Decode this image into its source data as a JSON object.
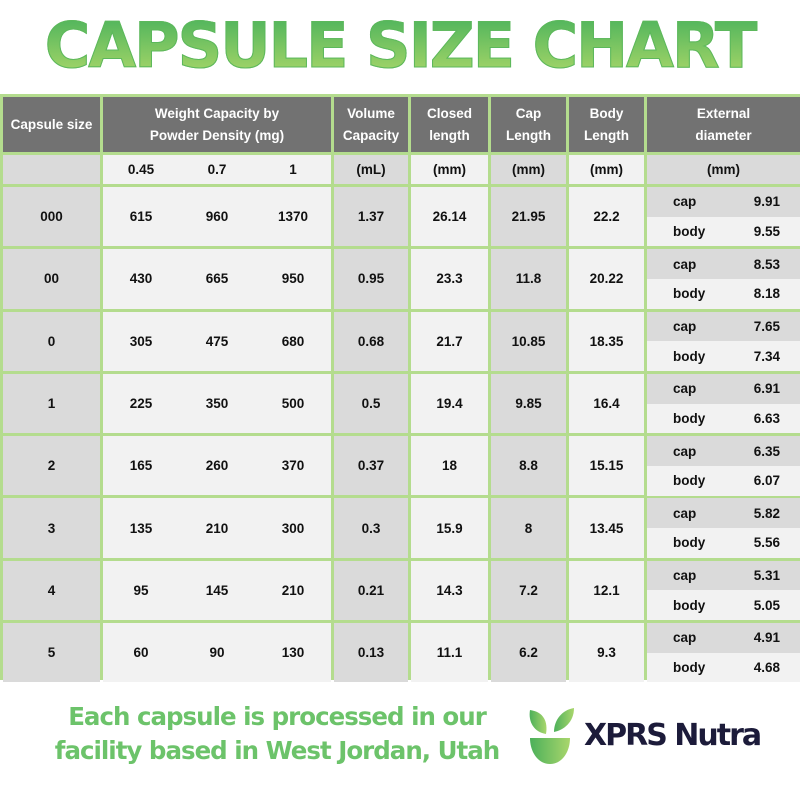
{
  "title": "CAPSULE SIZE CHART",
  "headers": [
    "Capsule size",
    "Weight Capacity by Powder Density (mg)",
    "Volume Capacity",
    "Closed length",
    "Cap Length",
    "Body Length",
    "External diameter"
  ],
  "units": {
    "size": "",
    "densities": [
      "0.45",
      "0.7",
      "1"
    ],
    "volume": "(mL)",
    "closed": "(mm)",
    "cap": "(mm)",
    "body": "(mm)",
    "diameter": "(mm)"
  },
  "labels": {
    "cap": "cap",
    "body": "body"
  },
  "rows": [
    {
      "size": "000",
      "w": [
        "615",
        "960",
        "1370"
      ],
      "volume": "1.37",
      "closed": "26.14",
      "cap_len": "21.95",
      "body_len": "22.2",
      "d_cap": "9.91",
      "d_body": "9.55"
    },
    {
      "size": "00",
      "w": [
        "430",
        "665",
        "950"
      ],
      "volume": "0.95",
      "closed": "23.3",
      "cap_len": "11.8",
      "body_len": "20.22",
      "d_cap": "8.53",
      "d_body": "8.18"
    },
    {
      "size": "0",
      "w": [
        "305",
        "475",
        "680"
      ],
      "volume": "0.68",
      "closed": "21.7",
      "cap_len": "10.85",
      "body_len": "18.35",
      "d_cap": "7.65",
      "d_body": "7.34"
    },
    {
      "size": "1",
      "w": [
        "225",
        "350",
        "500"
      ],
      "volume": "0.5",
      "closed": "19.4",
      "cap_len": "9.85",
      "body_len": "16.4",
      "d_cap": "6.91",
      "d_body": "6.63"
    },
    {
      "size": "2",
      "w": [
        "165",
        "260",
        "370"
      ],
      "volume": "0.37",
      "closed": "18",
      "cap_len": "8.8",
      "body_len": "15.15",
      "d_cap": "6.35",
      "d_body": "6.07"
    },
    {
      "size": "3",
      "w": [
        "135",
        "210",
        "300"
      ],
      "volume": "0.3",
      "closed": "15.9",
      "cap_len": "8",
      "body_len": "13.45",
      "d_cap": "5.82",
      "d_body": "5.56"
    },
    {
      "size": "4",
      "w": [
        "95",
        "145",
        "210"
      ],
      "volume": "0.21",
      "closed": "14.3",
      "cap_len": "7.2",
      "body_len": "12.1",
      "d_cap": "5.31",
      "d_body": "5.05"
    },
    {
      "size": "5",
      "w": [
        "60",
        "90",
        "130"
      ],
      "volume": "0.13",
      "closed": "11.1",
      "cap_len": "6.2",
      "body_len": "9.3",
      "d_cap": "4.91",
      "d_body": "4.68"
    }
  ],
  "footer": {
    "line1": "Each capsule is processed in our",
    "line2": "facility based in West Jordan, Utah"
  },
  "brand": {
    "name": "XPRS Nutra",
    "logo_text": "XPRS Nutra",
    "colors": {
      "green": "#6cc36a",
      "navy": "#1c1b3a",
      "border": "#b4dc8e",
      "header": "#727272"
    }
  }
}
